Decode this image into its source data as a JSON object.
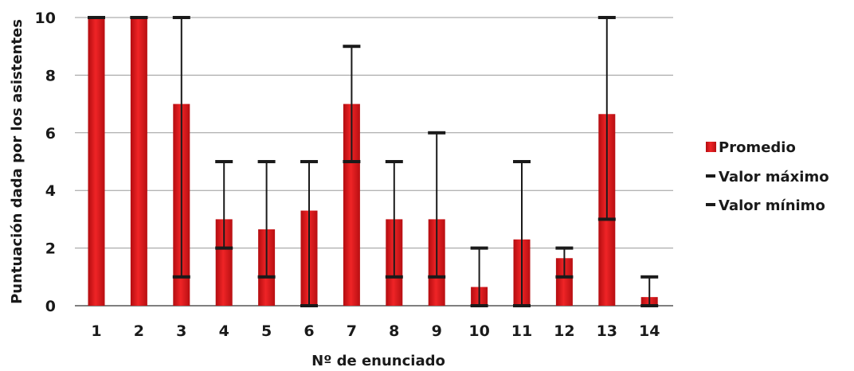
{
  "chart_data": {
    "type": "bar",
    "xlabel": "Nº de enunciado",
    "ylabel": "Puntuación dada por los asistentes",
    "ylim": [
      0,
      10
    ],
    "yticks": [
      "0",
      "2",
      "4",
      "6",
      "8",
      "10"
    ],
    "grid": "horizontal",
    "legend_position": "right",
    "categories": [
      "1",
      "2",
      "3",
      "4",
      "5",
      "6",
      "7",
      "8",
      "9",
      "10",
      "11",
      "12",
      "13",
      "14"
    ],
    "series": [
      {
        "name": "Promedio",
        "kind": "bar",
        "color": "#e0191b",
        "values": [
          10,
          10,
          7,
          3,
          2.65,
          3.3,
          7,
          3,
          3,
          0.65,
          2.3,
          1.65,
          6.65,
          0.3
        ]
      },
      {
        "name": "Valor máximo",
        "kind": "marker",
        "color": "#1a1a1a",
        "values": [
          10,
          10,
          10,
          5,
          5,
          5,
          9,
          5,
          6,
          2,
          5,
          2,
          10,
          1
        ]
      },
      {
        "name": "Valor mínimo",
        "kind": "marker",
        "color": "#1a1a1a",
        "values": [
          10,
          10,
          1,
          2,
          1,
          0,
          5,
          1,
          1,
          0,
          0,
          1,
          3,
          0
        ]
      }
    ]
  }
}
